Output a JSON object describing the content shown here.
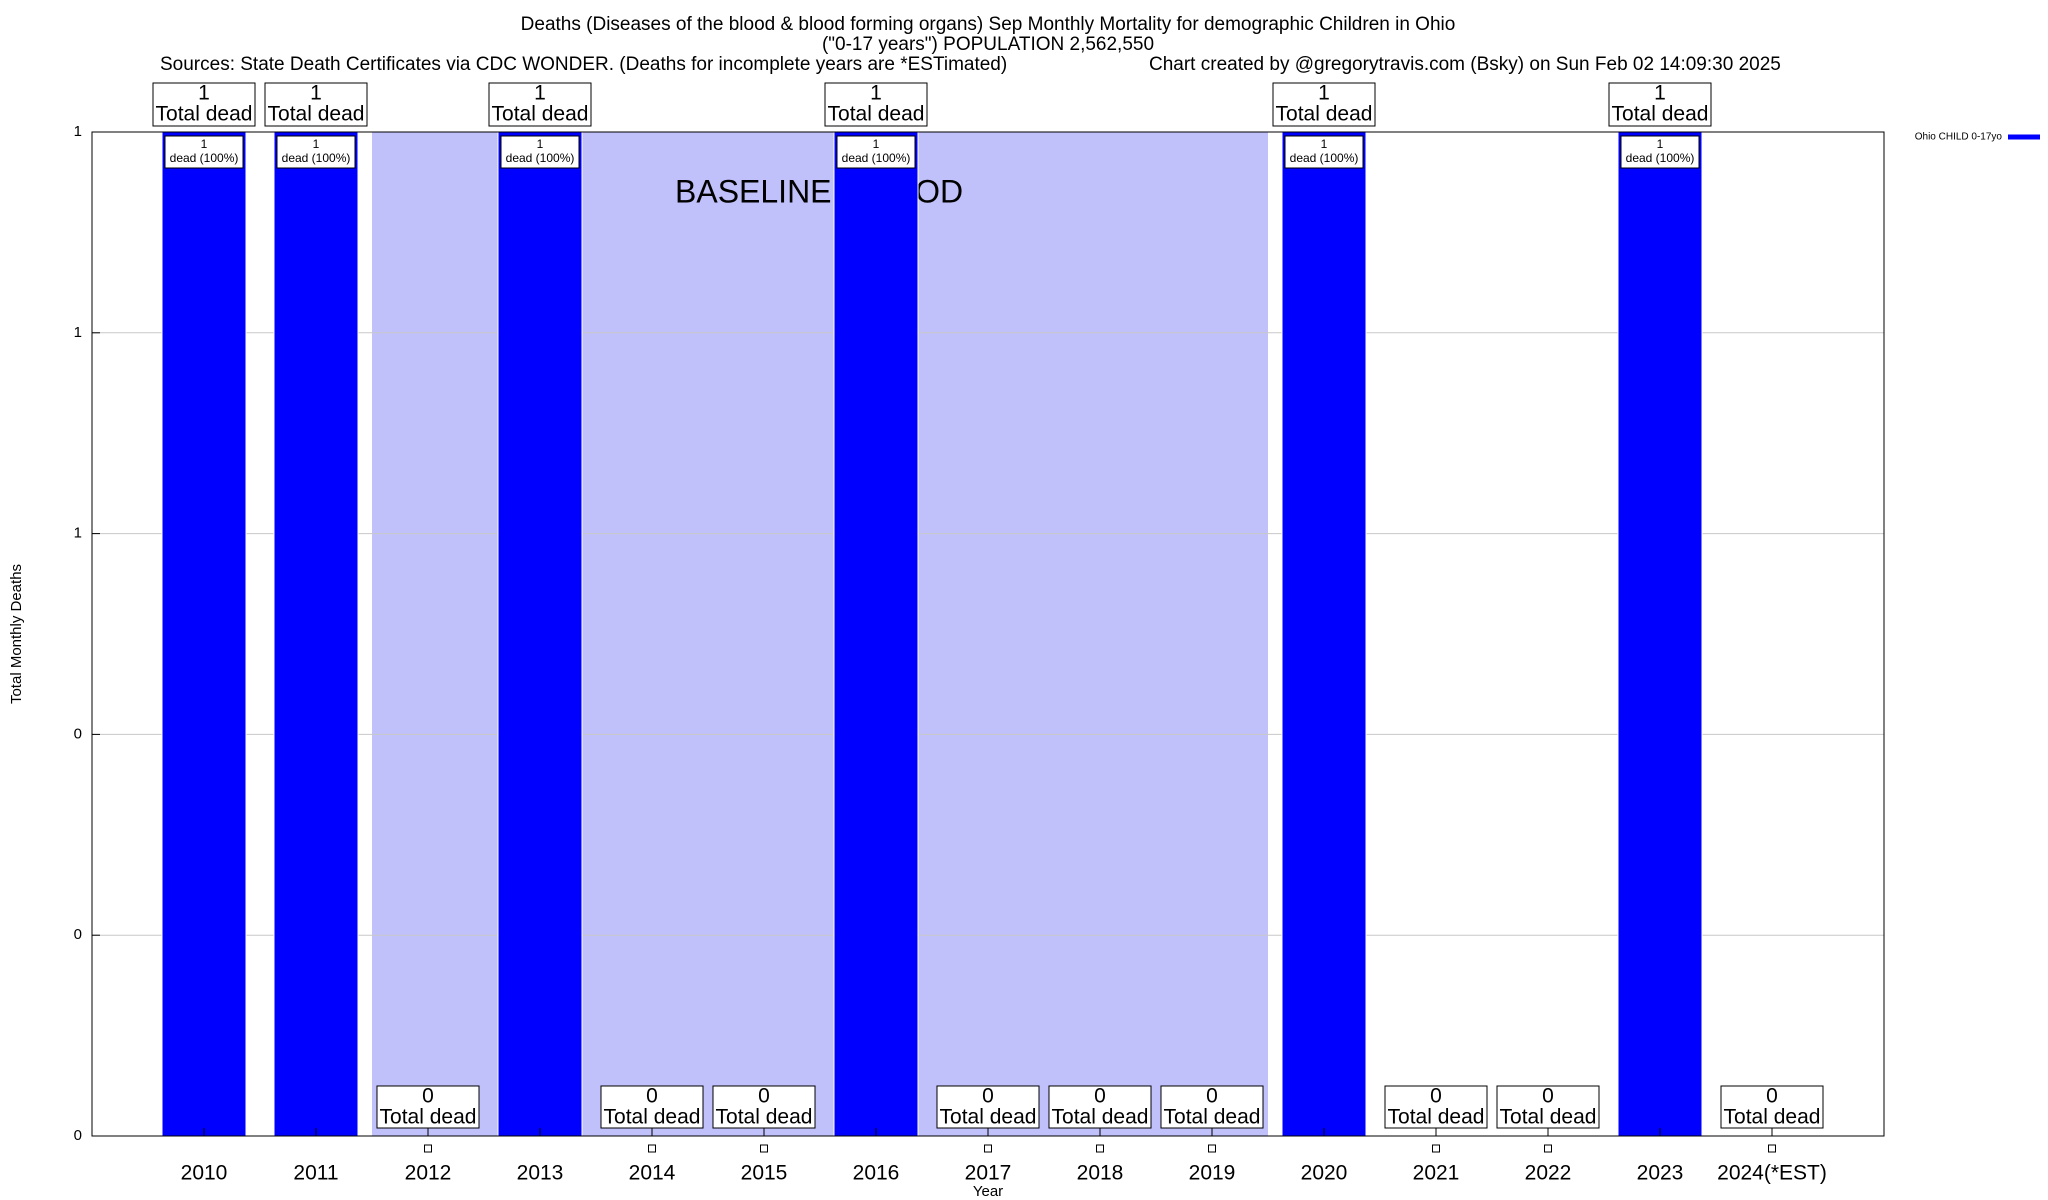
{
  "chart_data": {
    "type": "bar",
    "title": "Deaths (Diseases of the blood & blood forming organs) Sep Monthly Mortality for demographic Children in Ohio",
    "subtitle": "(\"0-17 years\") POPULATION 2,562,550",
    "sources": "Sources: State Death Certificates via CDC WONDER. (Deaths for incomplete years are *ESTimated)",
    "credit": "Chart created by @gregorytravis.com (Bsky) on Sun Feb 02 14:09:30 2025",
    "xlabel": "Year",
    "ylabel": "Total Monthly Deaths",
    "categories": [
      "2010",
      "2011",
      "2012",
      "2013",
      "2014",
      "2015",
      "2016",
      "2017",
      "2018",
      "2019",
      "2020",
      "2021",
      "2022",
      "2023",
      "2024(*EST)"
    ],
    "series": [
      {
        "name": "Ohio CHILD 0-17yo",
        "color": "#0000ff",
        "values": [
          1,
          1,
          0,
          1,
          0,
          0,
          1,
          0,
          0,
          0,
          1,
          0,
          0,
          1,
          0
        ]
      }
    ],
    "total_label": "Total dead",
    "bar_label": "dead (100%)",
    "shaded_region": {
      "label": "BASELINE PERIOD",
      "from": "2012",
      "to": "2019",
      "color": "#c0c0fa"
    },
    "ylim": [
      0,
      1
    ],
    "yticks": [
      0,
      {
        "value": 0.2,
        "label": "0"
      },
      {
        "value": 0.4,
        "label": "0"
      },
      {
        "value": 0.6,
        "label": "1"
      },
      {
        "value": 0.8,
        "label": "1"
      },
      1
    ],
    "grid": true,
    "legend": "top-right"
  }
}
